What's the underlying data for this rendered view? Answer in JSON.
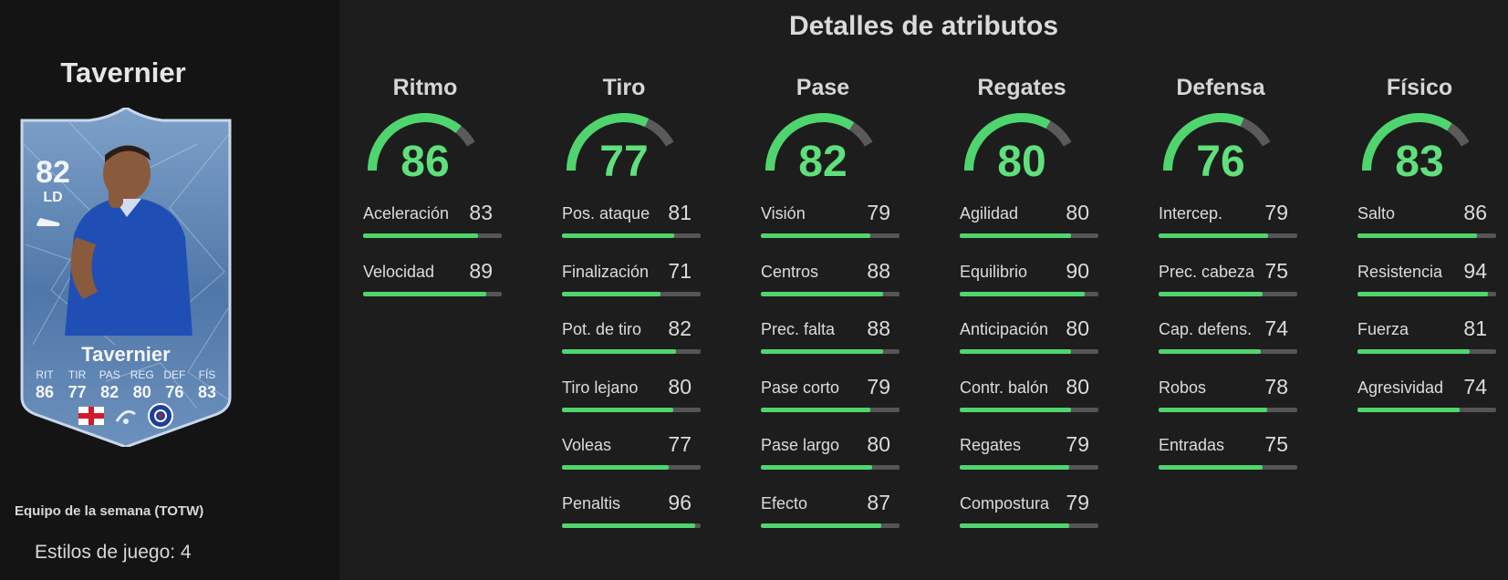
{
  "player": {
    "name": "Tavernier",
    "rating": "82",
    "position": "LD",
    "card_stats": [
      {
        "label": "RIT",
        "value": "86"
      },
      {
        "label": "TIR",
        "value": "77"
      },
      {
        "label": "PAS",
        "value": "82"
      },
      {
        "label": "REG",
        "value": "80"
      },
      {
        "label": "DEF",
        "value": "76"
      },
      {
        "label": "FÍS",
        "value": "83"
      }
    ],
    "card_type": "Equipo de la semana (TOTW)",
    "playstyles": "Estilos de juego: 4"
  },
  "title": "Detalles de atributos",
  "colors": {
    "accent_green": "#4fd56e",
    "gauge_track": "#5a5a5a",
    "background": "#1d1d1d",
    "sidebar": "#141414"
  },
  "categories": [
    {
      "name": "Ritmo",
      "value": 86,
      "attributes": [
        {
          "name": "Aceleración",
          "value": 83
        },
        {
          "name": "Velocidad",
          "value": 89
        }
      ]
    },
    {
      "name": "Tiro",
      "value": 77,
      "attributes": [
        {
          "name": "Pos. ataque",
          "value": 81
        },
        {
          "name": "Finalización",
          "value": 71
        },
        {
          "name": "Pot. de tiro",
          "value": 82
        },
        {
          "name": "Tiro lejano",
          "value": 80
        },
        {
          "name": "Voleas",
          "value": 77
        },
        {
          "name": "Penaltis",
          "value": 96
        }
      ]
    },
    {
      "name": "Pase",
      "value": 82,
      "attributes": [
        {
          "name": "Visión",
          "value": 79
        },
        {
          "name": "Centros",
          "value": 88
        },
        {
          "name": "Prec. falta",
          "value": 88
        },
        {
          "name": "Pase corto",
          "value": 79
        },
        {
          "name": "Pase largo",
          "value": 80
        },
        {
          "name": "Efecto",
          "value": 87
        }
      ]
    },
    {
      "name": "Regates",
      "value": 80,
      "attributes": [
        {
          "name": "Agilidad",
          "value": 80
        },
        {
          "name": "Equilibrio",
          "value": 90
        },
        {
          "name": "Anticipación",
          "value": 80
        },
        {
          "name": "Contr. balón",
          "value": 80
        },
        {
          "name": "Regates",
          "value": 79
        },
        {
          "name": "Compostura",
          "value": 79
        }
      ]
    },
    {
      "name": "Defensa",
      "value": 76,
      "attributes": [
        {
          "name": "Intercep.",
          "value": 79
        },
        {
          "name": "Prec. cabeza",
          "value": 75
        },
        {
          "name": "Cap. defens.",
          "value": 74
        },
        {
          "name": "Robos",
          "value": 78
        },
        {
          "name": "Entradas",
          "value": 75
        }
      ]
    },
    {
      "name": "Físico",
      "value": 83,
      "attributes": [
        {
          "name": "Salto",
          "value": 86
        },
        {
          "name": "Resistencia",
          "value": 94
        },
        {
          "name": "Fuerza",
          "value": 81
        },
        {
          "name": "Agresividad",
          "value": 74
        }
      ]
    }
  ]
}
